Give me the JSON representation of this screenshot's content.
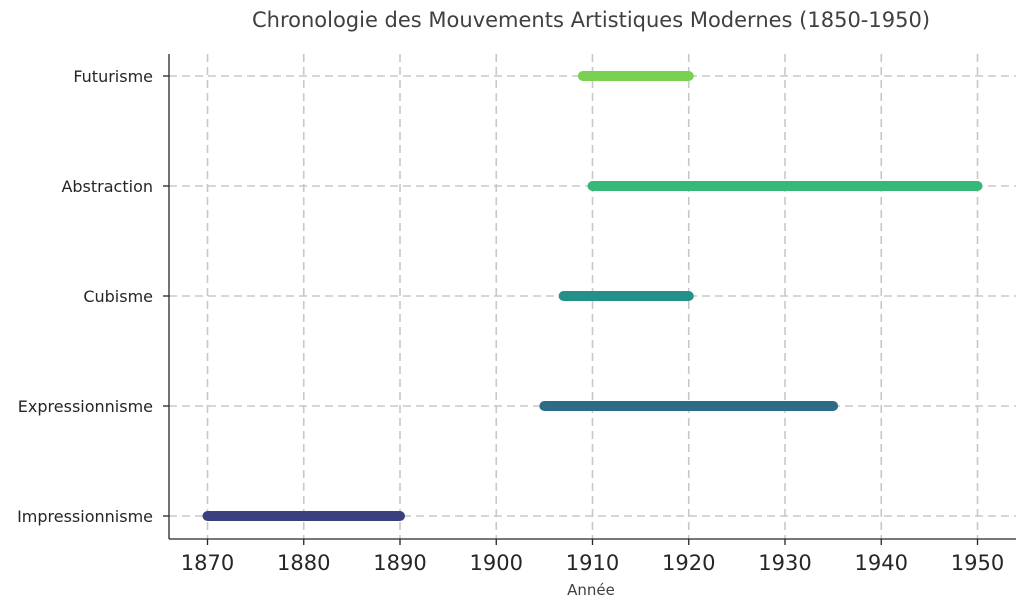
{
  "chart_data": {
    "type": "timeline",
    "title": "Chronologie des Mouvements Artistiques Modernes (1850-1950)",
    "xlabel": "Année",
    "ylabel": "",
    "xlim": [
      1866,
      1954
    ],
    "x_ticks": [
      1870,
      1880,
      1890,
      1900,
      1910,
      1920,
      1930,
      1940,
      1950
    ],
    "grid": true,
    "categories": [
      "Impressionnisme",
      "Expressionnisme",
      "Cubisme",
      "Abstraction",
      "Futurisme"
    ],
    "series": [
      {
        "label": "Impressionnisme",
        "start": 1870,
        "end": 1890,
        "color": "#3b3f7e"
      },
      {
        "label": "Expressionnisme",
        "start": 1905,
        "end": 1935,
        "color": "#2e6b86"
      },
      {
        "label": "Cubisme",
        "start": 1907,
        "end": 1920,
        "color": "#23918a"
      },
      {
        "label": "Abstraction",
        "start": 1910,
        "end": 1950,
        "color": "#38b77a"
      },
      {
        "label": "Futurisme",
        "start": 1909,
        "end": 1920,
        "color": "#79d151"
      }
    ]
  }
}
